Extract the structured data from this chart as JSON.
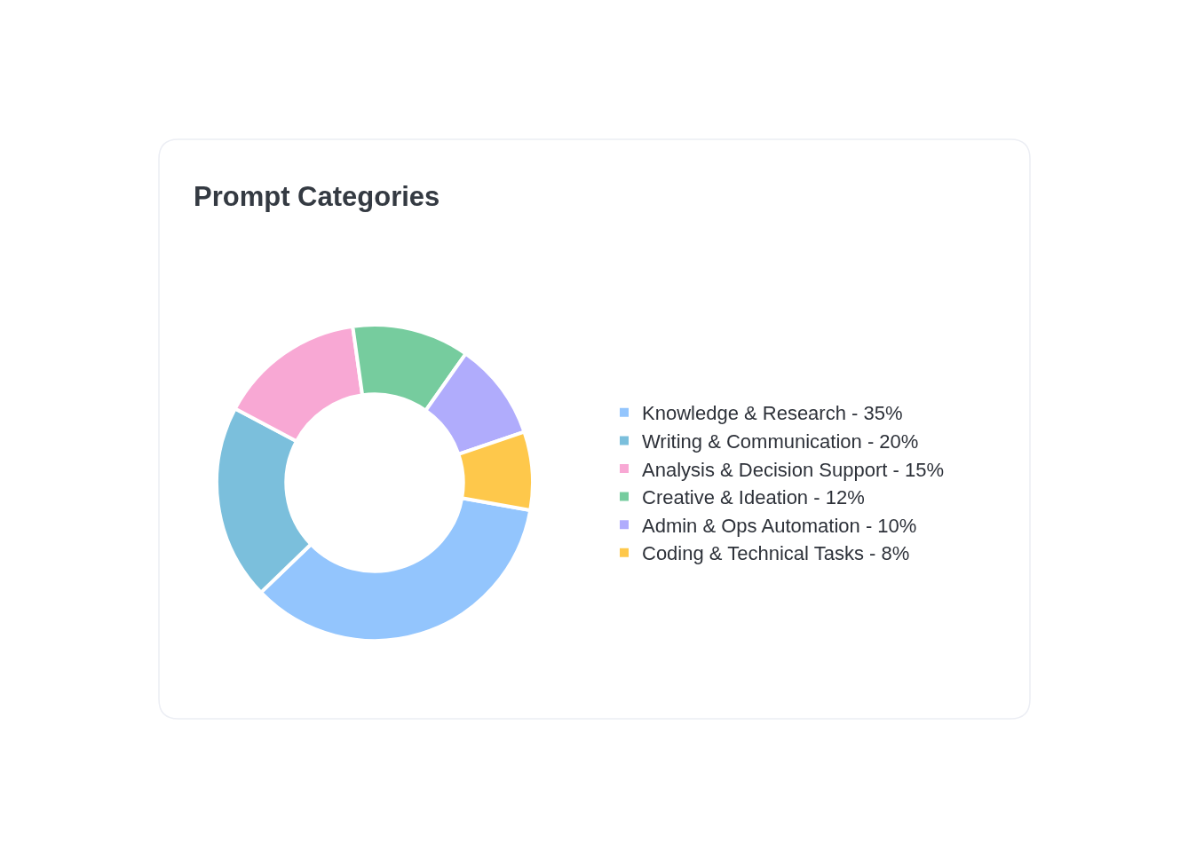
{
  "chart_data": {
    "type": "donut",
    "title": "Prompt Categories",
    "categories": [
      "Knowledge & Research - 35%",
      "Writing & Communication - 20%",
      "Analysis & Decision Support - 15%",
      "Creative & Ideation - 12%",
      "Admin & Ops Automation - 10%",
      "Coding & Technical Tasks - 8%"
    ],
    "values": [
      35,
      20,
      15,
      12,
      10,
      8
    ],
    "colors": [
      "#93c5fd",
      "#7bbfdc",
      "#f8a8d4",
      "#76cc9e",
      "#b0acfc",
      "#fec84b"
    ],
    "legend": "right"
  }
}
